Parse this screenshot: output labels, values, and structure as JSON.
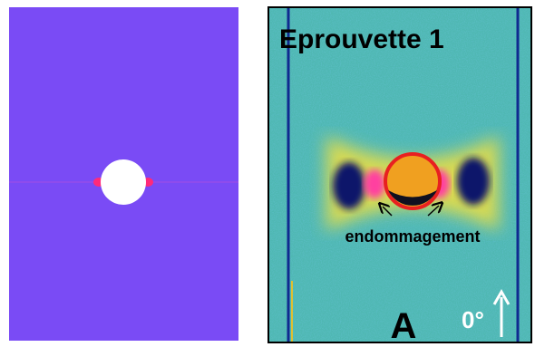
{
  "right_panel": {
    "title": "Eprouvette 1",
    "annotation": "endommagement",
    "panel_label": "A",
    "orientation_label": "0°"
  }
}
